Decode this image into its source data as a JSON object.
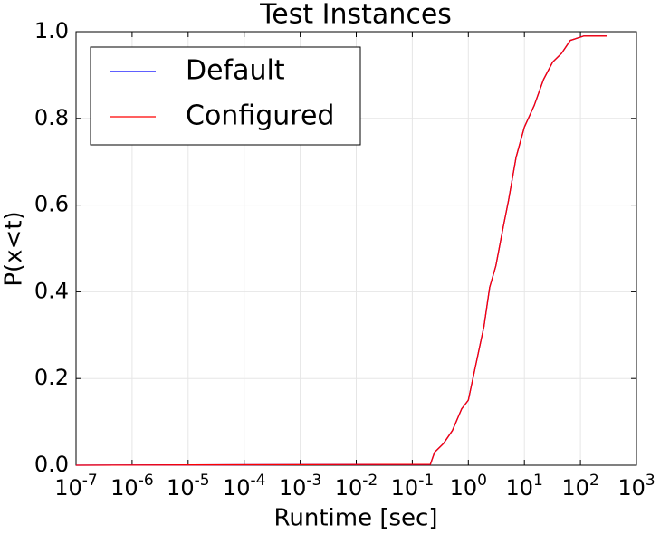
{
  "chart_data": {
    "type": "line",
    "title": "Test Instances",
    "x_label": "Runtime [sec]",
    "y_label": "P(x<t)",
    "x_scale": "log",
    "grid": true,
    "legend_position": "upper left",
    "xlim": [
      1e-07,
      1000
    ],
    "ylim": [
      0,
      1
    ],
    "xticks": [
      {
        "value": 1e-07,
        "label": "10^-7"
      },
      {
        "value": 1e-06,
        "label": "10^-6"
      },
      {
        "value": 1e-05,
        "label": "10^-5"
      },
      {
        "value": 0.0001,
        "label": "10^-4"
      },
      {
        "value": 0.001,
        "label": "10^-3"
      },
      {
        "value": 0.01,
        "label": "10^-2"
      },
      {
        "value": 0.1,
        "label": "10^-1"
      },
      {
        "value": 1,
        "label": "10^0"
      },
      {
        "value": 10,
        "label": "10^1"
      },
      {
        "value": 100,
        "label": "10^2"
      },
      {
        "value": 1000,
        "label": "10^3"
      }
    ],
    "yticks": [
      {
        "value": 0,
        "label": "0.0"
      },
      0.2,
      0.4,
      0.6,
      0.8,
      {
        "value": 1,
        "label": "1.0"
      }
    ],
    "x": [
      1e-07,
      0.21,
      0.25,
      0.36,
      0.52,
      0.76,
      1.0,
      1.3,
      1.9,
      2.4,
      3.1,
      4.2,
      5.2,
      7.1,
      10,
      15,
      22,
      32,
      46,
      66,
      115,
      295
    ],
    "series": [
      {
        "name": "Default",
        "color": "#0000ff",
        "values": [
          0,
          0.002,
          0.03,
          0.05,
          0.08,
          0.13,
          0.15,
          0.22,
          0.32,
          0.41,
          0.46,
          0.55,
          0.61,
          0.71,
          0.78,
          0.83,
          0.89,
          0.93,
          0.95,
          0.98,
          0.99,
          0.99
        ]
      },
      {
        "name": "Configured",
        "color": "#ff0000",
        "values": [
          0,
          0.002,
          0.03,
          0.05,
          0.08,
          0.13,
          0.15,
          0.22,
          0.32,
          0.41,
          0.46,
          0.55,
          0.61,
          0.71,
          0.78,
          0.83,
          0.89,
          0.93,
          0.95,
          0.98,
          0.99,
          0.99
        ]
      }
    ]
  }
}
